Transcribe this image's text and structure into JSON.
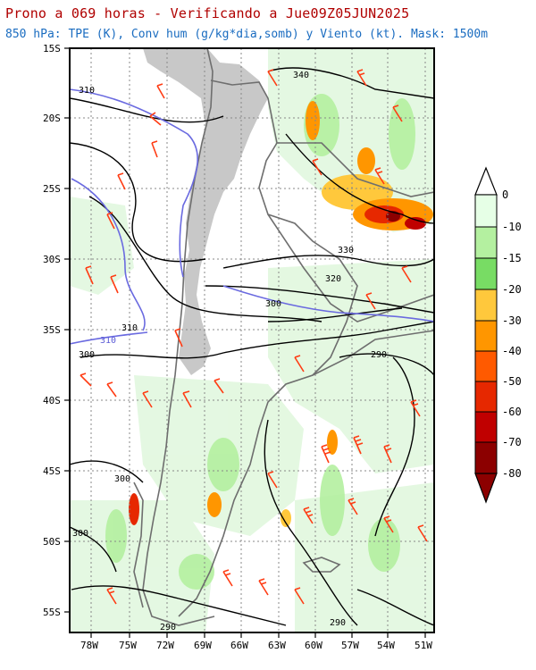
{
  "header": {
    "title": "Prono a 069 horas - Verificando a Jue09Z05JUN2025",
    "subtitle": "850 hPa: TPE (K), Conv hum (g/kg*dia,somb) y Viento (kt). Mask: 1500m"
  },
  "map": {
    "lat_ticks": [
      "15S",
      "20S",
      "25S",
      "30S",
      "35S",
      "40S",
      "45S",
      "50S",
      "55S"
    ],
    "lon_ticks": [
      "78W",
      "75W",
      "72W",
      "69W",
      "66W",
      "63W",
      "60W",
      "57W",
      "54W",
      "51W"
    ],
    "contour_labels": [
      {
        "text": "310",
        "color": "#000000"
      },
      {
        "text": "340",
        "color": "#000000"
      },
      {
        "text": "330",
        "color": "#000000"
      },
      {
        "text": "320",
        "color": "#000000"
      },
      {
        "text": "300",
        "color": "#000000"
      },
      {
        "text": "310",
        "color": "#000000"
      },
      {
        "text": "310",
        "color": "#5b5bd6"
      },
      {
        "text": "300",
        "color": "#000000"
      },
      {
        "text": "290",
        "color": "#000000"
      },
      {
        "text": "300",
        "color": "#000000"
      },
      {
        "text": "300",
        "color": "#000000"
      },
      {
        "text": "290",
        "color": "#000000"
      },
      {
        "text": "290",
        "color": "#000000"
      }
    ],
    "colors": {
      "terrain_mask": "#c8c8c8",
      "contour_line": "#000000",
      "contour_310": "#6a6ae0",
      "borders": "#808080",
      "wind_barbs": "#ff3c14",
      "grid": "#888888"
    }
  },
  "colorbar": {
    "labels": [
      "0",
      "-10",
      "-15",
      "-20",
      "-30",
      "-40",
      "-50",
      "-60",
      "-70",
      "-80"
    ],
    "colors": [
      "#e6ffe6",
      "#b4f0a0",
      "#78dc64",
      "#ffc83c",
      "#ff9600",
      "#ff5a00",
      "#e62800",
      "#c00000",
      "#8c0000"
    ]
  }
}
